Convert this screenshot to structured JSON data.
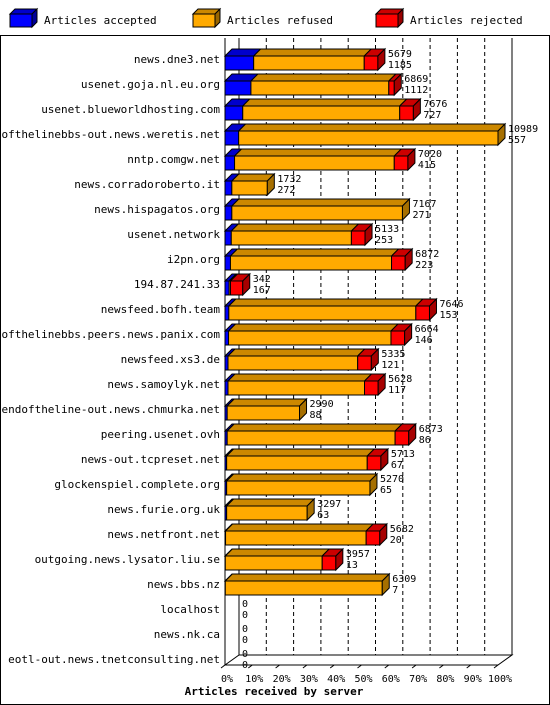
{
  "chart_data": {
    "type": "bar",
    "orientation": "horizontal",
    "stacked": true,
    "xlabel": "Articles received by server",
    "x_ticks": [
      "0%",
      "10%",
      "20%",
      "30%",
      "40%",
      "50%",
      "60%",
      "70%",
      "80%",
      "90%",
      "100%"
    ],
    "xlim": [
      0,
      100
    ],
    "legend_placement": "top",
    "series": [
      {
        "name": "Articles accepted",
        "color": "#0000ff"
      },
      {
        "name": "Articles refused",
        "color": "#ffaa00"
      },
      {
        "name": "Articles rejected",
        "color": "#ff0000"
      }
    ],
    "rows": [
      {
        "server": "news.dne3.net",
        "accepted_pct": 10.5,
        "refused_pct": 40.5,
        "rejected_pct": 5,
        "label_top": "5679",
        "label_bottom": "1185"
      },
      {
        "server": "usenet.goja.nl.eu.org",
        "accepted_pct": 9.5,
        "refused_pct": 50.5,
        "rejected_pct": 2,
        "label_top": "6869",
        "label_bottom": "1112"
      },
      {
        "server": "usenet.blueworldhosting.com",
        "accepted_pct": 6.5,
        "refused_pct": 57.5,
        "rejected_pct": 5,
        "label_top": "7676",
        "label_bottom": "727"
      },
      {
        "server": "endofthelinebbs-out.news.weretis.net",
        "accepted_pct": 5,
        "refused_pct": 95,
        "rejected_pct": 0,
        "label_top": "10989",
        "label_bottom": "557"
      },
      {
        "server": "nntp.comgw.net",
        "accepted_pct": 3.5,
        "refused_pct": 58.5,
        "rejected_pct": 5,
        "label_top": "7020",
        "label_bottom": "415"
      },
      {
        "server": "news.corradoroberto.it",
        "accepted_pct": 2.5,
        "refused_pct": 13,
        "rejected_pct": 0,
        "label_top": "1732",
        "label_bottom": "272"
      },
      {
        "server": "news.hispagatos.org",
        "accepted_pct": 2.5,
        "refused_pct": 62.5,
        "rejected_pct": 0,
        "label_top": "7167",
        "label_bottom": "271"
      },
      {
        "server": "usenet.network",
        "accepted_pct": 2.3,
        "refused_pct": 44,
        "rejected_pct": 5,
        "label_top": "5133",
        "label_bottom": "253"
      },
      {
        "server": "i2pn.org",
        "accepted_pct": 2,
        "refused_pct": 59,
        "rejected_pct": 5,
        "label_top": "6872",
        "label_bottom": "223"
      },
      {
        "server": "194.87.241.33",
        "accepted_pct": 1.5,
        "refused_pct": 0.5,
        "rejected_pct": 4.5,
        "label_top": "342",
        "label_bottom": "167"
      },
      {
        "server": "newsfeed.bofh.team",
        "accepted_pct": 1.4,
        "refused_pct": 68.5,
        "rejected_pct": 5,
        "label_top": "7646",
        "label_bottom": "153"
      },
      {
        "server": "endofthelinebbs.peers.news.panix.com",
        "accepted_pct": 1.3,
        "refused_pct": 59.5,
        "rejected_pct": 5,
        "label_top": "6664",
        "label_bottom": "146"
      },
      {
        "server": "newsfeed.xs3.de",
        "accepted_pct": 1.1,
        "refused_pct": 47.5,
        "rejected_pct": 5,
        "label_top": "5335",
        "label_bottom": "121"
      },
      {
        "server": "news.samoylyk.net",
        "accepted_pct": 1.1,
        "refused_pct": 50,
        "rejected_pct": 5,
        "label_top": "5628",
        "label_bottom": "117"
      },
      {
        "server": "endoftheline-out.news.chmurka.net",
        "accepted_pct": 0.8,
        "refused_pct": 26.5,
        "rejected_pct": 0,
        "label_top": "2990",
        "label_bottom": "88"
      },
      {
        "server": "peering.usenet.ovh",
        "accepted_pct": 0.8,
        "refused_pct": 61.5,
        "rejected_pct": 5,
        "label_top": "6873",
        "label_bottom": "86"
      },
      {
        "server": "news-out.tcpreset.net",
        "accepted_pct": 0.6,
        "refused_pct": 51.5,
        "rejected_pct": 5,
        "label_top": "5713",
        "label_bottom": "67"
      },
      {
        "server": "glockenspiel.complete.org",
        "accepted_pct": 0.6,
        "refused_pct": 52.5,
        "rejected_pct": 0,
        "label_top": "5270",
        "label_bottom": "65"
      },
      {
        "server": "news.furie.org.uk",
        "accepted_pct": 0.6,
        "refused_pct": 29.5,
        "rejected_pct": 0,
        "label_top": "3297",
        "label_bottom": "63"
      },
      {
        "server": "news.netfront.net",
        "accepted_pct": 0.2,
        "refused_pct": 51.5,
        "rejected_pct": 5,
        "label_top": "5682",
        "label_bottom": "20"
      },
      {
        "server": "outgoing.news.lysator.liu.se",
        "accepted_pct": 0.1,
        "refused_pct": 35.5,
        "rejected_pct": 5,
        "label_top": "3957",
        "label_bottom": "13"
      },
      {
        "server": "news.bbs.nz",
        "accepted_pct": 0.1,
        "refused_pct": 57.5,
        "rejected_pct": 0,
        "label_top": "6309",
        "label_bottom": "7"
      },
      {
        "server": "localhost",
        "accepted_pct": 0,
        "refused_pct": 0,
        "rejected_pct": 0,
        "label_top": "0",
        "label_bottom": "0"
      },
      {
        "server": "news.nk.ca",
        "accepted_pct": 0,
        "refused_pct": 0,
        "rejected_pct": 0,
        "label_top": "0",
        "label_bottom": "0"
      },
      {
        "server": "eotl-out.news.tnetconsulting.net",
        "accepted_pct": 0,
        "refused_pct": 0,
        "rejected_pct": 0,
        "label_top": "0",
        "label_bottom": "0"
      }
    ]
  }
}
